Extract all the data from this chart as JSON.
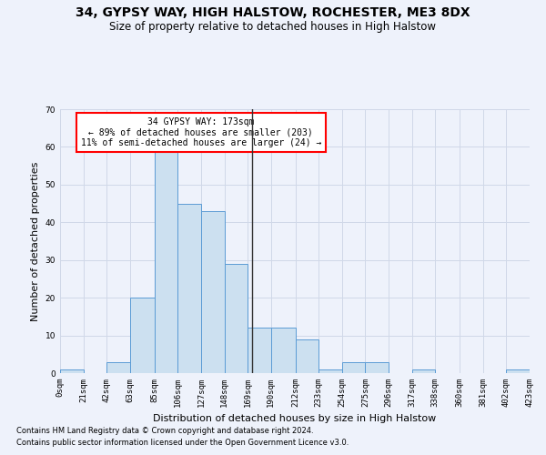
{
  "title": "34, GYPSY WAY, HIGH HALSTOW, ROCHESTER, ME3 8DX",
  "subtitle": "Size of property relative to detached houses in High Halstow",
  "xlabel": "Distribution of detached houses by size in High Halstow",
  "ylabel": "Number of detached properties",
  "footnote1": "Contains HM Land Registry data © Crown copyright and database right 2024.",
  "footnote2": "Contains public sector information licensed under the Open Government Licence v3.0.",
  "annotation_line1": "34 GYPSY WAY: 173sqm",
  "annotation_line2": "← 89% of detached houses are smaller (203)",
  "annotation_line3": "11% of semi-detached houses are larger (24) →",
  "bar_color": "#cce0f0",
  "bar_edge_color": "#5b9bd5",
  "vline_color": "#333333",
  "vline_x": 173,
  "bin_edges": [
    0,
    21,
    42,
    63,
    85,
    106,
    127,
    148,
    169,
    190,
    212,
    233,
    254,
    275,
    296,
    317,
    338,
    360,
    381,
    402,
    423
  ],
  "bin_counts": [
    1,
    0,
    3,
    20,
    59,
    45,
    43,
    29,
    12,
    12,
    9,
    1,
    3,
    3,
    0,
    1,
    0,
    0,
    0,
    1
  ],
  "ylim": [
    0,
    70
  ],
  "yticks": [
    0,
    10,
    20,
    30,
    40,
    50,
    60,
    70
  ],
  "grid_color": "#d0d8e8",
  "bg_color": "#eef2fb",
  "box_facecolor": "white",
  "box_edgecolor": "red",
  "title_fontsize": 10,
  "subtitle_fontsize": 8.5,
  "xlabel_fontsize": 8,
  "ylabel_fontsize": 8,
  "tick_fontsize": 6.5,
  "annot_fontsize": 7,
  "footnote_fontsize": 6
}
